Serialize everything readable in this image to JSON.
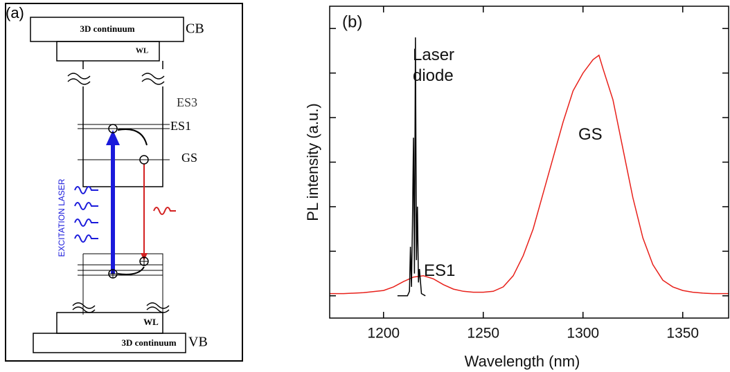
{
  "diagram": {
    "panel_label": "(a)",
    "cb_continuum": "3D continuum",
    "cb": "CB",
    "cb_wl": "WL",
    "es3": "ES3",
    "es1": "ES1",
    "gs": "GS",
    "excitation": "EXCITATION LASER",
    "vb_wl": "WL",
    "vb_continuum": "3D continuum",
    "vb": "VB"
  },
  "chart_data": {
    "type": "line",
    "panel_label": "(b)",
    "x_label": "Wavelength (nm)",
    "y_label": "PL intensity (a.u.)",
    "annotations": [
      "Laser diode",
      "ES1",
      "GS"
    ],
    "xlim": [
      1173,
      1373
    ],
    "xticks": [
      1200,
      1250,
      1300,
      1350
    ],
    "ylim": [
      0.5,
      7.5
    ],
    "yticks": [
      1,
      2,
      3,
      4,
      5,
      6,
      7
    ],
    "series": [
      {
        "color": "#e8201a",
        "x": [
          1173,
          1180,
          1190,
          1200,
          1205,
          1210,
          1215,
          1220,
          1225,
          1230,
          1235,
          1240,
          1245,
          1250,
          1255,
          1260,
          1265,
          1270,
          1275,
          1280,
          1285,
          1290,
          1295,
          1300,
          1305,
          1308,
          1310,
          1315,
          1320,
          1325,
          1330,
          1335,
          1340,
          1345,
          1350,
          1355,
          1360,
          1365,
          1373
        ],
        "values": [
          1.05,
          1.05,
          1.07,
          1.12,
          1.2,
          1.32,
          1.42,
          1.45,
          1.38,
          1.25,
          1.15,
          1.1,
          1.08,
          1.08,
          1.1,
          1.2,
          1.45,
          1.9,
          2.5,
          3.3,
          4.1,
          4.9,
          5.6,
          6.0,
          6.3,
          6.4,
          6.1,
          5.4,
          4.3,
          3.2,
          2.3,
          1.7,
          1.35,
          1.2,
          1.12,
          1.08,
          1.06,
          1.05,
          1.05
        ]
      },
      {
        "color": "#000000",
        "x": [
          1207,
          1212,
          1213,
          1213.5,
          1214,
          1214.5,
          1215,
          1215.5,
          1216,
          1216.5,
          1217,
          1217.5,
          1218,
          1219,
          1221
        ],
        "values": [
          1.0,
          1.0,
          1.1,
          2.1,
          1.2,
          2.6,
          4.55,
          1.5,
          6.8,
          1.8,
          3.0,
          1.3,
          1.6,
          1.05,
          1.0
        ]
      }
    ]
  }
}
